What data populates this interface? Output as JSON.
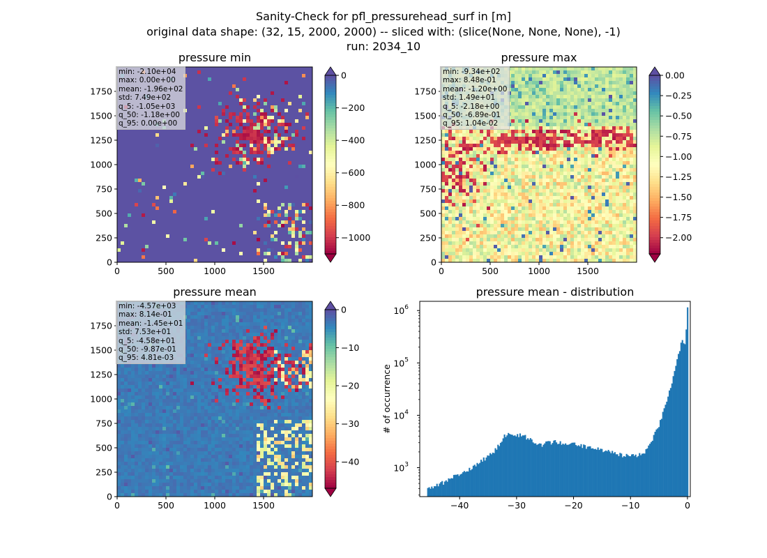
{
  "figure": {
    "title_lines": [
      "Sanity-Check for pfl_pressurehead_surf in [m]",
      "original data shape: (32, 15, 2000, 2000) -- sliced with: (slice(None, None, None), -1)",
      "run: 2034_10"
    ]
  },
  "chart_data": [
    {
      "type": "heatmap",
      "title": "pressure min",
      "xlim": [
        0,
        2000
      ],
      "ylim": [
        0,
        2000
      ],
      "xticks": [
        "0",
        "500",
        "1000",
        "1500"
      ],
      "yticks": [
        "0",
        "250",
        "500",
        "750",
        "1000",
        "1250",
        "1500",
        "1750"
      ],
      "colorbar": {
        "cmap": "Spectral",
        "vmin": -1100,
        "vmax": 0,
        "ticks": [
          "0",
          "−200",
          "−400",
          "−600",
          "−800",
          "−1000"
        ],
        "tick_values": [
          0,
          -200,
          -400,
          -600,
          -800,
          -1000
        ]
      },
      "stats": [
        "min: -2.10e+04",
        "max: 0.00e+00",
        "mean: -1.96e+02",
        "std: 7.49e+02",
        "q_5: -1.05e+03",
        "q_50: -1.18e+00",
        "q_95: 0.00e+00"
      ]
    },
    {
      "type": "heatmap",
      "title": "pressure max",
      "xlim": [
        0,
        2000
      ],
      "ylim": [
        0,
        2000
      ],
      "xticks": [
        "0",
        "500",
        "1000",
        "1500"
      ],
      "yticks": [
        "0",
        "250",
        "500",
        "750",
        "1000",
        "1250",
        "1500",
        "1750"
      ],
      "colorbar": {
        "cmap": "Spectral",
        "vmin": -2.2,
        "vmax": 0,
        "ticks": [
          "0.00",
          "−0.25",
          "−0.50",
          "−0.75",
          "−1.00",
          "−1.25",
          "−1.50",
          "−1.75",
          "−2.00"
        ],
        "tick_values": [
          0,
          -0.25,
          -0.5,
          -0.75,
          -1.0,
          -1.25,
          -1.5,
          -1.75,
          -2.0
        ]
      },
      "stats": [
        "min: -9.34e+02",
        "max: 8.48e-01",
        "mean: -1.20e+00",
        "std: 1.49e+01",
        "q_5: -2.18e+00",
        "q_50: -6.89e-01",
        "q_95: 1.04e-02"
      ]
    },
    {
      "type": "heatmap",
      "title": "pressure mean",
      "xlim": [
        0,
        2000
      ],
      "ylim": [
        0,
        2000
      ],
      "xticks": [
        "0",
        "500",
        "1000",
        "1500"
      ],
      "yticks": [
        "0",
        "250",
        "500",
        "750",
        "1000",
        "1250",
        "1500",
        "1750"
      ],
      "colorbar": {
        "cmap": "Spectral",
        "vmin": -47,
        "vmax": 0,
        "ticks": [
          "0",
          "−10",
          "−20",
          "−30",
          "−40"
        ],
        "tick_values": [
          0,
          -10,
          -20,
          -30,
          -40
        ]
      },
      "stats": [
        "min: -4.57e+03",
        "max: 8.14e-01",
        "mean: -1.45e+01",
        "std: 7.53e+01",
        "q_5: -4.58e+01",
        "q_50: -9.87e-01",
        "q_95: 4.81e-03"
      ]
    },
    {
      "type": "bar",
      "title": "pressure mean - distribution",
      "ylabel": "# of occurrence",
      "yscale": "log",
      "xlim": [
        -47,
        0.5
      ],
      "ylim": [
        280,
        1500000
      ],
      "xticks": [
        "−40",
        "−30",
        "−20",
        "−10",
        "0"
      ],
      "xtick_values": [
        -40,
        -30,
        -20,
        -10,
        0
      ],
      "yticks": [
        {
          "base": "10",
          "exp": "3",
          "value": 1000
        },
        {
          "base": "10",
          "exp": "4",
          "value": 10000
        },
        {
          "base": "10",
          "exp": "5",
          "value": 100000
        },
        {
          "base": "10",
          "exp": "6",
          "value": 1000000
        }
      ],
      "color": "#1f77b4",
      "bin_width": 0.228,
      "bins": [
        [
          -45.7,
          380
        ],
        [
          -45,
          420
        ],
        [
          -44,
          460
        ],
        [
          -43,
          520
        ],
        [
          -42,
          580
        ],
        [
          -41,
          680
        ],
        [
          -40,
          750
        ],
        [
          -39,
          850
        ],
        [
          -38,
          1000
        ],
        [
          -37,
          1200
        ],
        [
          -36,
          1400
        ],
        [
          -35,
          1700
        ],
        [
          -34,
          2100
        ],
        [
          -33,
          3000
        ],
        [
          -32.3,
          4200
        ],
        [
          -31,
          4400
        ],
        [
          -30,
          4300
        ],
        [
          -29,
          4000
        ],
        [
          -28,
          3600
        ],
        [
          -27,
          2900
        ],
        [
          -26,
          2700
        ],
        [
          -25,
          2900
        ],
        [
          -24,
          3000
        ],
        [
          -23,
          3100
        ],
        [
          -22,
          2950
        ],
        [
          -21,
          2850
        ],
        [
          -20,
          2750
        ],
        [
          -19,
          2700
        ],
        [
          -18,
          2550
        ],
        [
          -17,
          2450
        ],
        [
          -16,
          2300
        ],
        [
          -15,
          2150
        ],
        [
          -14,
          2000
        ],
        [
          -13,
          1900
        ],
        [
          -12,
          1800
        ],
        [
          -11,
          1700
        ],
        [
          -10,
          1650
        ],
        [
          -9,
          1700
        ],
        [
          -8,
          1850
        ],
        [
          -7,
          2400
        ],
        [
          -6,
          4000
        ],
        [
          -5,
          7000
        ],
        [
          -4,
          15000
        ],
        [
          -3,
          35000
        ],
        [
          -2,
          100000
        ],
        [
          -1.5,
          180000
        ],
        [
          -1,
          300000
        ],
        [
          -0.5,
          200000
        ],
        [
          -0.1,
          1150000
        ]
      ]
    }
  ]
}
